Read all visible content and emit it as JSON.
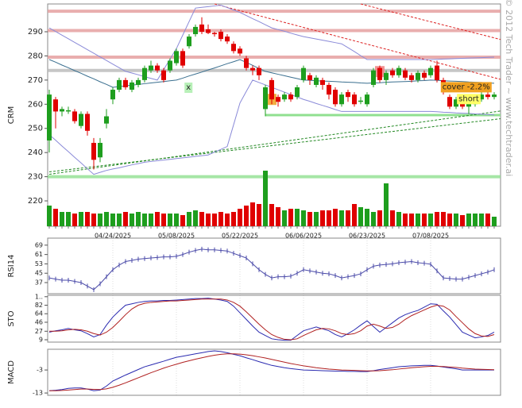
{
  "chart_data": [
    {
      "type": "candlestick",
      "ylabel": "CRM",
      "categories": [
        null,
        null,
        null,
        null,
        null,
        null,
        null,
        null,
        null,
        null,
        "04/24/2025",
        null,
        null,
        null,
        null,
        null,
        null,
        null,
        null,
        null,
        "05/08/2025",
        null,
        null,
        null,
        null,
        null,
        null,
        null,
        null,
        null,
        "05/22/2025",
        null,
        null,
        null,
        null,
        null,
        null,
        null,
        null,
        null,
        "06/06/2025",
        null,
        null,
        null,
        null,
        null,
        null,
        null,
        null,
        null,
        "06/23/2025",
        null,
        null,
        null,
        null,
        null,
        null,
        null,
        null,
        null,
        "07/08/2025",
        null,
        null,
        null,
        null,
        null,
        null,
        null,
        null,
        null,
        null
      ],
      "open": [
        245,
        262,
        257,
        257,
        257,
        251,
        256,
        244,
        238,
        252,
        262,
        266,
        270,
        266,
        268,
        270,
        274,
        276,
        274,
        274,
        277,
        282,
        284,
        289,
        293,
        291,
        289.5,
        290,
        288,
        285,
        283,
        279,
        275,
        275,
        258,
        270,
        263,
        262,
        264,
        263,
        270,
        272,
        268,
        270,
        268,
        266,
        260,
        265,
        264,
        261,
        260,
        268,
        275,
        270,
        274,
        272,
        274,
        272,
        270,
        273,
        272,
        276,
        270,
        263,
        259,
        262,
        259,
        260,
        262,
        264,
        263
      ],
      "high": [
        266,
        263,
        259,
        259,
        258,
        257,
        257,
        246,
        246,
        258,
        267,
        271,
        271,
        270,
        271,
        276,
        278,
        277,
        275,
        279,
        283,
        283,
        289,
        293,
        296,
        293,
        290,
        291,
        289,
        286,
        284,
        280,
        276,
        276,
        268,
        271,
        264,
        265,
        265,
        268,
        276,
        273,
        272,
        271,
        269,
        267,
        265,
        266,
        265,
        263,
        265,
        275,
        276,
        274,
        275,
        276,
        275,
        273,
        274,
        274,
        276,
        278,
        271,
        264,
        263,
        263,
        262,
        264,
        265,
        265,
        265
      ],
      "low": [
        240,
        250,
        255,
        256,
        252,
        250,
        247,
        233,
        236,
        250,
        260,
        265,
        266,
        265,
        267,
        269,
        273,
        273,
        269,
        273,
        276,
        275,
        283,
        288,
        289,
        289,
        288,
        286,
        285,
        281,
        280,
        274,
        272,
        270,
        255,
        260,
        259,
        261,
        261,
        262,
        269,
        268,
        267,
        266,
        262,
        259,
        259,
        261,
        259,
        260,
        259,
        267,
        269,
        268,
        271,
        271,
        270,
        269,
        269,
        270,
        271,
        269,
        264,
        258,
        258,
        258,
        256,
        259,
        261,
        262,
        262
      ],
      "close": [
        264,
        257,
        258,
        257.5,
        253,
        256,
        249,
        237,
        244,
        255,
        266,
        270,
        267,
        269,
        270,
        275,
        276,
        274,
        270,
        278,
        282,
        276,
        288,
        292,
        290,
        289.5,
        289,
        287,
        286,
        282,
        281,
        275,
        274,
        272,
        267,
        262,
        261,
        264,
        262,
        267,
        275,
        270,
        271,
        268,
        264,
        260,
        264,
        263,
        260,
        261.5,
        264,
        274,
        270,
        273,
        272,
        275,
        271,
        270,
        273,
        271,
        275,
        270,
        265,
        259,
        262,
        259,
        261,
        263,
        264,
        263,
        264
      ],
      "up_color": "#1e9e1e",
      "down_color": "#e00000",
      "ylim": [
        209.5,
        301.5
      ],
      "yticks": [
        220,
        230,
        240,
        250,
        260,
        270,
        280,
        290
      ],
      "volume": [
        13,
        11,
        9,
        9,
        8,
        9,
        9,
        8,
        8,
        9,
        8,
        8,
        9,
        8,
        9,
        8,
        8,
        9,
        8,
        8,
        8,
        7,
        9,
        10,
        9,
        8,
        8,
        9,
        8,
        9,
        11,
        13,
        15,
        14,
        35,
        14,
        12,
        10,
        11,
        11,
        10,
        9,
        9,
        10,
        10,
        11,
        10,
        10,
        14,
        12,
        11,
        9,
        10,
        27,
        10,
        9,
        8,
        8,
        8,
        8,
        8,
        9,
        9,
        8,
        8,
        7,
        8,
        8,
        8,
        8,
        6
      ],
      "volume_ylim": [
        0,
        40
      ],
      "overlays": [
        {
          "color": "#8a8ad8",
          "values": [
            291.6,
            290.1,
            288.6,
            287.1,
            285.6,
            284.1,
            282.6,
            281.1,
            279.6,
            278.1,
            276.6,
            275.1,
            273.6,
            272.9,
            272.2,
            271.4,
            270.7,
            270,
            274.3,
            278.7,
            283,
            288.6,
            294.2,
            299.8,
            300.1,
            300.4,
            300.7,
            301,
            300,
            299,
            298,
            296.7,
            295.4,
            294.2,
            292.9,
            291.6,
            290.9,
            290.2,
            289.4,
            288.7,
            288,
            287.5,
            287,
            286.5,
            286,
            285.5,
            285,
            283.4,
            281.8,
            280.1,
            278.5,
            278.5,
            278.5,
            278.5,
            278.5,
            278.5,
            278.5,
            278.5,
            278.5,
            278.5,
            278.5,
            278.6,
            278.7,
            278.8,
            278.9,
            279,
            279.1,
            279.2,
            279.3,
            279.4,
            279.5
          ]
        },
        {
          "color": "#8a8ad8",
          "values": [
            247.4,
            245.1,
            242.7,
            240.4,
            238.0,
            235.7,
            233.3,
            231,
            231.8,
            232.6,
            233.2,
            233.7,
            234.3,
            234.9,
            235.4,
            236,
            236.3,
            236.6,
            236.9,
            237.2,
            237.5,
            237.8,
            238.1,
            238.4,
            238.7,
            239,
            240.2,
            241.3,
            242.5,
            251.5,
            260.5,
            265.3,
            270,
            269,
            268,
            267,
            266,
            265,
            264,
            263,
            262,
            261.2,
            260.3,
            259.5,
            258.7,
            257.8,
            257,
            257,
            257,
            257,
            257,
            257,
            257,
            257,
            257,
            257,
            257,
            257,
            257,
            257,
            257,
            256.9,
            256.7,
            256.6,
            256.4,
            256.3,
            256.2,
            256,
            255.9,
            255.7,
            255.6
          ]
        },
        {
          "color": "#3a6f8f",
          "values": [
            278.5,
            277.4,
            276.2,
            275.1,
            273.9,
            272.8,
            271.6,
            270.5,
            269.3,
            268.2,
            267,
            267.3,
            267.6,
            267.9,
            268.2,
            268.5,
            268.8,
            269.1,
            269.4,
            269.7,
            270,
            270.8,
            271.7,
            272.5,
            273.3,
            274.2,
            275,
            275.9,
            276.8,
            277.6,
            278.5,
            277.3,
            276.1,
            274.8,
            273.6,
            273,
            272.4,
            271.8,
            271.2,
            270.6,
            270,
            269.9,
            269.7,
            269.6,
            269.5,
            269.4,
            269.2,
            269.1,
            269,
            268.8,
            268.7,
            268.8,
            268.9,
            269.1,
            269.2,
            269.3,
            269.4,
            269.5,
            269.7,
            269.8,
            270,
            269.9,
            269.7,
            269.6,
            269.5,
            269.4,
            269.2,
            269.1,
            269,
            268.8,
            268.7
          ]
        }
      ],
      "levels": [
        {
          "value": 298.5,
          "color": "#e49a9a"
        },
        {
          "value": 290.5,
          "color": "#e49a9a"
        },
        {
          "value": 279.5,
          "color": "#e49a9a"
        },
        {
          "value": 274,
          "color": "#b8b8b8"
        },
        {
          "value": 230,
          "color": "#90e090"
        }
      ],
      "trendlines": [
        {
          "x": [
            34,
            71
          ],
          "y": [
            255.5,
            255.5
          ],
          "color": "#90e090",
          "dash": false
        },
        {
          "x": [
            0,
            71
          ],
          "y": [
            231,
            257.2
          ],
          "color": "#228822",
          "dash": true
        },
        {
          "x": [
            0,
            71
          ],
          "y": [
            232,
            254
          ],
          "color": "#228822",
          "dash": true
        },
        {
          "x": [
            26,
            71
          ],
          "y": [
            301.5,
            270.3
          ],
          "color": "#dd2222",
          "dash": true
        },
        {
          "x": [
            49,
            71
          ],
          "y": [
            301.5,
            286.8
          ],
          "color": "#dd2222",
          "dash": true
        }
      ],
      "markers": [
        {
          "x": 35,
          "y": 262,
          "color": "#f0a020"
        },
        {
          "x": 52,
          "y": 273.5,
          "color": "#f08080"
        }
      ],
      "annotations": [
        {
          "text": "x",
          "x": 21.9,
          "y": 267,
          "color": "#b8f0b8"
        },
        {
          "text": "cover -2.2%",
          "x": 65.6,
          "y": 267.2,
          "color": "#f0a020"
        },
        {
          "text": "short",
          "x": 66,
          "y": 262.3,
          "color": "#ffff66"
        }
      ],
      "watermark": "© 2012 Tech Trader ~ www.techtrader.ai"
    },
    {
      "type": "line",
      "ylabel": "RSI14",
      "ylim": [
        27.5,
        75
      ],
      "yticks": [
        37,
        45,
        53,
        61,
        69
      ],
      "crosses": true,
      "series": [
        {
          "color": "#4a4aa8",
          "values": [
            41,
            40,
            39,
            39,
            38,
            37,
            34,
            31,
            36,
            42,
            48,
            52,
            55,
            56,
            57,
            57.5,
            58,
            58.5,
            59,
            59,
            59.5,
            61,
            63,
            64.5,
            65.6,
            65,
            65,
            64.5,
            64,
            62,
            60,
            58,
            53,
            48,
            44,
            41,
            42,
            42,
            42.5,
            45,
            48,
            47,
            46,
            45,
            44.5,
            43,
            41,
            42,
            43,
            44.5,
            48,
            51,
            52,
            52.5,
            53,
            54,
            54.5,
            55,
            54,
            53.5,
            52.7,
            47,
            41,
            40.5,
            40,
            40,
            41.5,
            43,
            44.5,
            46,
            48
          ]
        }
      ]
    },
    {
      "type": "line",
      "ylabel": "STO",
      "ylim": [
        4,
        103
      ],
      "yticks": [
        9,
        27,
        46,
        64,
        82,
        {
          "value": 100,
          "label": "1.."
        }
      ],
      "crosses": false,
      "series": [
        {
          "color": "#2a2ab0",
          "values": [
            25,
            28,
            30,
            33,
            30,
            28,
            22,
            15,
            20,
            40,
            57,
            70,
            82,
            85,
            88,
            90,
            91,
            91,
            92,
            92,
            93,
            94,
            95,
            96,
            96,
            97,
            95,
            93,
            90,
            80,
            66,
            52,
            38,
            25,
            18,
            11,
            9,
            8,
            8,
            18,
            28,
            32,
            36,
            32,
            28,
            20,
            15,
            22,
            30,
            40,
            49,
            37,
            25,
            35,
            45,
            55,
            62,
            67,
            71,
            78,
            85,
            84,
            70,
            57,
            41,
            25,
            19,
            13,
            15,
            18,
            25
          ]
        },
        {
          "color": "#b02020",
          "values": [
            27,
            27,
            28,
            30,
            31,
            30,
            27,
            22,
            19,
            25,
            35,
            48,
            62,
            74,
            82,
            86,
            88,
            89,
            90,
            91,
            91,
            92,
            93,
            94,
            95,
            95,
            95,
            95,
            93,
            88,
            80,
            68,
            55,
            42,
            30,
            20,
            14,
            10,
            9,
            11,
            18,
            24,
            30,
            33,
            32,
            28,
            22,
            20,
            22,
            28,
            38,
            42,
            38,
            33,
            35,
            42,
            52,
            60,
            66,
            72,
            78,
            82,
            80,
            72,
            58,
            45,
            32,
            22,
            17,
            16,
            20
          ]
        }
      ]
    },
    {
      "type": "line",
      "ylabel": "MACD",
      "ylim": [
        -14,
        6
      ],
      "yticks": [
        -13,
        -3
      ],
      "crosses": false,
      "series": [
        {
          "color": "#2a2ab0",
          "values": [
            -12,
            -11.8,
            -11.5,
            -11,
            -10.8,
            -10.8,
            -11.3,
            -12,
            -11.7,
            -10,
            -7.8,
            -6.5,
            -5.2,
            -4,
            -2.8,
            -1.6,
            -0.8,
            0,
            0.8,
            1.7,
            2.5,
            3,
            3.5,
            4,
            4.5,
            5,
            5.3,
            5,
            4.5,
            3.8,
            3.2,
            2.3,
            1.5,
            0.6,
            -0.2,
            -1,
            -1.5,
            -2,
            -2.4,
            -2.7,
            -3,
            -3.1,
            -3.2,
            -3.3,
            -3.4,
            -3.5,
            -3.5,
            -3.6,
            -3.6,
            -3.7,
            -3.7,
            -3.3,
            -2.8,
            -2.4,
            -2,
            -1.6,
            -1.4,
            -1.2,
            -1.1,
            -1,
            -1,
            -1.3,
            -1.7,
            -2.1,
            -2.5,
            -3,
            -3,
            -3,
            -3,
            -3,
            -3
          ]
        },
        {
          "color": "#b02020",
          "values": [
            -12,
            -12,
            -11.9,
            -11.7,
            -11.5,
            -11.3,
            -11.3,
            -11.4,
            -11.5,
            -11.2,
            -10.5,
            -9.6,
            -8.6,
            -7.5,
            -6.4,
            -5.3,
            -4.2,
            -3.2,
            -2.2,
            -1.3,
            -0.5,
            0.3,
            1,
            1.7,
            2.3,
            2.9,
            3.4,
            3.8,
            4,
            4,
            3.9,
            3.6,
            3.2,
            2.7,
            2.2,
            1.6,
            1,
            0.4,
            -0.2,
            -0.7,
            -1.2,
            -1.6,
            -2,
            -2.3,
            -2.6,
            -2.8,
            -3,
            -3.1,
            -3.2,
            -3.3,
            -3.4,
            -3.4,
            -3.3,
            -3.1,
            -2.9,
            -2.6,
            -2.3,
            -2,
            -1.8,
            -1.6,
            -1.4,
            -1.4,
            -1.5,
            -1.7,
            -1.9,
            -2.2,
            -2.4,
            -2.6,
            -2.7,
            -2.8,
            -2.9
          ]
        }
      ]
    }
  ]
}
